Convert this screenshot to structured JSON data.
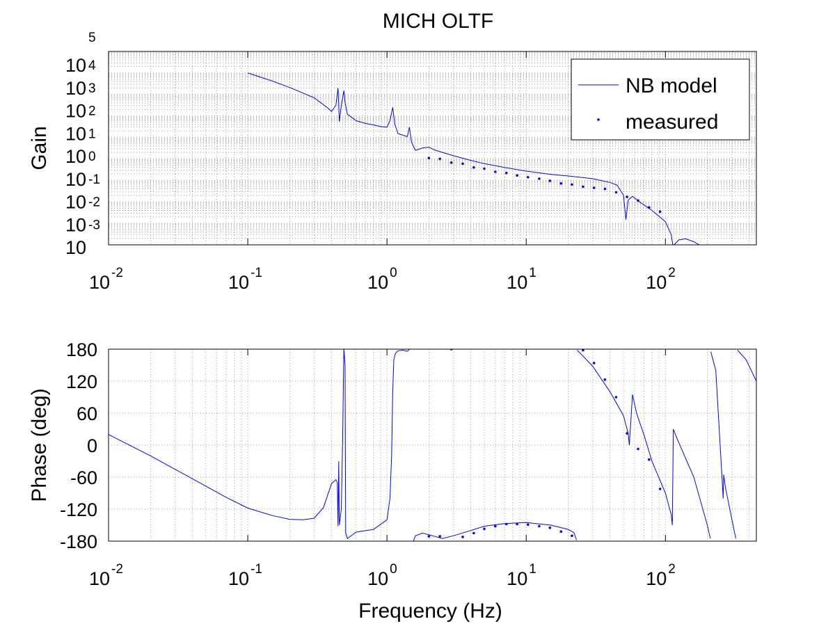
{
  "chart_data": [
    {
      "type": "line",
      "title": "MICH OLTF",
      "xlabel": "",
      "ylabel": "Gain",
      "xscale": "log",
      "yscale": "log",
      "xlim": [
        0.01,
        450
      ],
      "ylim": [
        0.0001,
        100000
      ],
      "x_ticks": [
        {
          "base": "10",
          "exp": "-2"
        },
        {
          "base": "10",
          "exp": "-1"
        },
        {
          "base": "10",
          "exp": "0"
        },
        {
          "base": "10",
          "exp": "1"
        },
        {
          "base": "10",
          "exp": "2"
        }
      ],
      "y_ticks": [
        {
          "base": "10",
          "exp": "4"
        },
        {
          "base": "10",
          "exp": "3"
        },
        {
          "base": "10",
          "exp": "2"
        },
        {
          "base": "10",
          "exp": "1"
        },
        {
          "base": "10",
          "exp": "0"
        },
        {
          "base": "10",
          "exp": "-1"
        },
        {
          "base": "10",
          "exp": "-2"
        },
        {
          "base": "10",
          "exp": "-3"
        },
        {
          "base": "10",
          "exp": ""
        }
      ],
      "y_top_exponent": "5",
      "grid": true,
      "legend": "top-right",
      "series": [
        {
          "name": "NB model",
          "style": "line",
          "color": "#0000ff",
          "points": [
            [
              0.1,
              10000
            ],
            [
              0.15,
              4200
            ],
            [
              0.2,
              2100
            ],
            [
              0.3,
              700
            ],
            [
              0.38,
              220
            ],
            [
              0.4,
              160
            ],
            [
              0.43,
              320
            ],
            [
              0.445,
              2000
            ],
            [
              0.455,
              55
            ],
            [
              0.47,
              300
            ],
            [
              0.49,
              1500
            ],
            [
              0.5,
              420
            ],
            [
              0.52,
              120
            ],
            [
              0.6,
              60
            ],
            [
              0.7,
              45
            ],
            [
              0.8,
              38
            ],
            [
              0.9,
              32
            ],
            [
              1.0,
              30
            ],
            [
              1.05,
              60
            ],
            [
              1.1,
              250
            ],
            [
              1.14,
              40
            ],
            [
              1.2,
              15
            ],
            [
              1.4,
              11
            ],
            [
              1.45,
              30
            ],
            [
              1.5,
              6
            ],
            [
              1.6,
              2.5
            ],
            [
              1.8,
              3.2
            ],
            [
              2.0,
              3.5
            ],
            [
              2.2,
              2.6
            ],
            [
              2.5,
              2.0
            ],
            [
              3,
              1.4
            ],
            [
              4,
              0.85
            ],
            [
              5,
              0.6
            ],
            [
              7,
              0.4
            ],
            [
              10,
              0.27
            ],
            [
              15,
              0.19
            ],
            [
              20,
              0.16
            ],
            [
              30,
              0.12
            ],
            [
              40,
              0.08
            ],
            [
              45,
              0.06
            ],
            [
              50,
              0.02
            ],
            [
              52,
              0.0015
            ],
            [
              54,
              0.012
            ],
            [
              58,
              0.018
            ],
            [
              65,
              0.01
            ],
            [
              80,
              0.004
            ],
            [
              100,
              0.0012
            ],
            [
              110,
              0.0003
            ],
            [
              113,
              0.0001
            ]
          ]
        },
        {
          "name": "",
          "style": "line",
          "color": "#0000ff",
          "points": [
            [
              115,
              0.0001
            ],
            [
              125,
              0.00017
            ],
            [
              140,
              0.00019
            ],
            [
              160,
              0.00014
            ],
            [
              175,
              0.0001
            ]
          ]
        },
        {
          "name": "measured",
          "style": "marker",
          "color": "#0000ff",
          "points": [
            [
              2.0,
              1.1
            ],
            [
              2.4,
              1.0
            ],
            [
              2.9,
              0.67
            ],
            [
              3.5,
              0.6
            ],
            [
              4.2,
              0.4
            ],
            [
              5.0,
              0.35
            ],
            [
              6.0,
              0.25
            ],
            [
              7.2,
              0.22
            ],
            [
              8.6,
              0.17
            ],
            [
              10.3,
              0.14
            ],
            [
              12.4,
              0.12
            ],
            [
              14.8,
              0.095
            ],
            [
              17.8,
              0.072
            ],
            [
              21.3,
              0.064
            ],
            [
              25.6,
              0.051
            ],
            [
              30.7,
              0.045
            ],
            [
              36.8,
              0.04
            ],
            [
              44.2,
              0.028
            ],
            [
              53,
              0.017
            ],
            [
              63.6,
              0.0115
            ],
            [
              76.3,
              0.0055
            ],
            [
              91.5,
              0.0035
            ]
          ]
        }
      ]
    },
    {
      "type": "line",
      "title": "",
      "xlabel": "Frequency (Hz)",
      "ylabel": "Phase (deg)",
      "xscale": "log",
      "yscale": "linear",
      "xlim": [
        0.01,
        450
      ],
      "ylim": [
        -180,
        180
      ],
      "x_ticks": [
        {
          "base": "10",
          "exp": "-2"
        },
        {
          "base": "10",
          "exp": "-1"
        },
        {
          "base": "10",
          "exp": "0"
        },
        {
          "base": "10",
          "exp": "1"
        },
        {
          "base": "10",
          "exp": "2"
        }
      ],
      "y_ticks": [
        "180",
        "120",
        "60",
        "0",
        "-60",
        "-120",
        "-180"
      ],
      "grid": true,
      "series": [
        {
          "name": "NB model",
          "style": "line",
          "color": "#0000ff",
          "points": [
            [
              0.01,
              20
            ],
            [
              0.02,
              -20
            ],
            [
              0.04,
              -63
            ],
            [
              0.07,
              -98
            ],
            [
              0.1,
              -118
            ],
            [
              0.15,
              -132
            ],
            [
              0.2,
              -139
            ],
            [
              0.25,
              -140
            ],
            [
              0.3,
              -137
            ],
            [
              0.35,
              -117
            ],
            [
              0.4,
              -72
            ],
            [
              0.43,
              -65
            ],
            [
              0.44,
              -70
            ],
            [
              0.445,
              -152
            ],
            [
              0.45,
              -30
            ],
            [
              0.455,
              -150
            ],
            [
              0.47,
              -120
            ],
            [
              0.48,
              10
            ],
            [
              0.49,
              180
            ],
            [
              0.5,
              150
            ],
            [
              0.505,
              -165
            ],
            [
              0.52,
              -175
            ],
            [
              0.6,
              -163
            ],
            [
              0.8,
              -158
            ],
            [
              1.0,
              -140
            ],
            [
              1.05,
              -100
            ],
            [
              1.08,
              -20
            ],
            [
              1.1,
              100
            ],
            [
              1.12,
              160
            ],
            [
              1.15,
              172
            ],
            [
              1.2,
              177
            ],
            [
              1.3,
              178
            ],
            [
              1.4,
              176
            ],
            [
              1.45,
              180
            ]
          ]
        },
        {
          "name": "",
          "style": "line",
          "color": "#0000ff",
          "points": [
            [
              1.55,
              -180
            ],
            [
              1.6,
              -170
            ],
            [
              1.8,
              -165
            ],
            [
              2.0,
              -168
            ],
            [
              2.5,
              -175
            ],
            [
              3,
              -170
            ],
            [
              4,
              -160
            ],
            [
              5,
              -152
            ],
            [
              7,
              -147
            ],
            [
              10,
              -145
            ],
            [
              15,
              -150
            ],
            [
              20,
              -158
            ],
            [
              22,
              -164
            ],
            [
              23,
              -178
            ]
          ]
        },
        {
          "name": "",
          "style": "line",
          "color": "#0000ff",
          "points": [
            [
              23.2,
              178
            ],
            [
              25,
              170
            ],
            [
              30,
              148
            ],
            [
              40,
              100
            ],
            [
              50,
              55
            ],
            [
              54,
              22
            ],
            [
              55,
              0
            ],
            [
              58,
              95
            ],
            [
              62,
              60
            ],
            [
              70,
              20
            ],
            [
              80,
              -30
            ],
            [
              100,
              -90
            ],
            [
              110,
              -130
            ],
            [
              112,
              -150
            ],
            [
              114,
              30
            ],
            [
              120,
              15
            ],
            [
              160,
              -60
            ],
            [
              200,
              -150
            ],
            [
              210,
              -175
            ]
          ]
        },
        {
          "name": "",
          "style": "line",
          "color": "#0000ff",
          "points": [
            [
              212,
              175
            ],
            [
              230,
              140
            ],
            [
              255,
              -60
            ],
            [
              260,
              -100
            ],
            [
              262,
              -55
            ],
            [
              270,
              -80
            ],
            [
              320,
              -175
            ]
          ]
        },
        {
          "name": "",
          "style": "line",
          "color": "#0000ff",
          "points": [
            [
              330,
              178
            ],
            [
              380,
              160
            ],
            [
              450,
              120
            ]
          ]
        },
        {
          "name": "measured",
          "style": "marker",
          "color": "#0000ff",
          "points": [
            [
              2.0,
              -171
            ],
            [
              2.4,
              -171
            ],
            [
              2.9,
              180
            ],
            [
              3.5,
              -172
            ],
            [
              4.2,
              -165
            ],
            [
              5.0,
              -157
            ],
            [
              6.0,
              -152
            ],
            [
              7.2,
              -148
            ],
            [
              8.6,
              -148
            ],
            [
              10.3,
              -149
            ],
            [
              12.4,
              -152
            ],
            [
              14.8,
              -155
            ],
            [
              17.8,
              -162
            ],
            [
              21.3,
              -170
            ],
            [
              25.6,
              178
            ],
            [
              30.7,
              154
            ],
            [
              36.8,
              123
            ],
            [
              44.2,
              90
            ],
            [
              53,
              22
            ],
            [
              63.6,
              -7
            ],
            [
              76.3,
              -27
            ],
            [
              91.5,
              -82
            ]
          ]
        }
      ]
    }
  ]
}
